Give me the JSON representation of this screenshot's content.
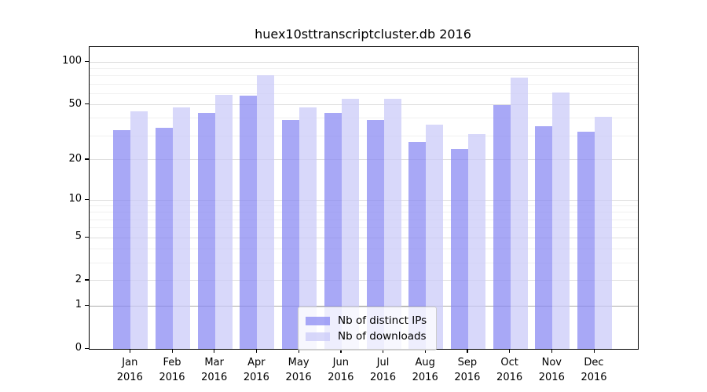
{
  "title": "huex10sttranscriptcluster.db 2016",
  "colors": {
    "ips_bar": "rgba(134,134,242,0.72)",
    "downloads_bar": "rgba(201,201,248,0.72)",
    "grid_major": "#dedede",
    "grid_minor": "#f0f0f0",
    "grid_one_line": "#ababab",
    "axis": "#000000"
  },
  "legend": {
    "items": [
      {
        "label": "Nb of distinct IPs",
        "series": "ips"
      },
      {
        "label": "Nb of downloads",
        "series": "downloads"
      }
    ]
  },
  "y_axis": {
    "tick_labels": [
      "100",
      "50",
      "20",
      "10",
      "5",
      "2",
      "1",
      "0"
    ],
    "tick_values": [
      100,
      50,
      20,
      10,
      5,
      2,
      1,
      0
    ],
    "minor_grid_values": [
      3,
      4,
      6,
      7,
      8,
      9,
      30,
      40,
      60,
      70,
      80,
      90
    ],
    "major_grid_values": [
      2,
      5,
      10,
      20,
      50,
      100
    ]
  },
  "x_axis": {
    "months": [
      "Jan",
      "Feb",
      "Mar",
      "Apr",
      "May",
      "Jun",
      "Jul",
      "Aug",
      "Sep",
      "Oct",
      "Nov",
      "Dec"
    ],
    "year": "2016"
  },
  "chart_data": {
    "type": "bar",
    "title": "huex10sttranscriptcluster.db 2016",
    "categories": [
      "Jan 2016",
      "Feb 2016",
      "Mar 2016",
      "Apr 2016",
      "May 2016",
      "Jun 2016",
      "Jul 2016",
      "Aug 2016",
      "Sep 2016",
      "Oct 2016",
      "Nov 2016",
      "Dec 2016"
    ],
    "series": [
      {
        "name": "Nb of distinct IPs",
        "values": [
          33,
          34,
          44,
          58,
          39,
          44,
          39,
          27,
          24,
          50,
          35,
          32
        ]
      },
      {
        "name": "Nb of downloads",
        "values": [
          45,
          48,
          59,
          81,
          48,
          55,
          55,
          36,
          31,
          78,
          61,
          41
        ]
      }
    ],
    "y_scale": "log1p",
    "y_ticks": [
      0,
      1,
      2,
      5,
      10,
      20,
      50,
      100
    ],
    "ylim": [
      0,
      127
    ],
    "xlabel": "",
    "ylabel": "",
    "grid": true,
    "legend_position": "lower center"
  }
}
